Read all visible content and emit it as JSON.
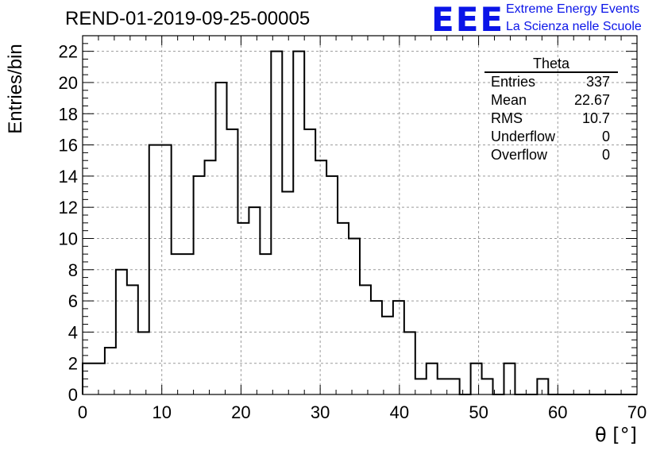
{
  "header": {
    "run_title": "REND-01-2019-09-25-00005",
    "logo_text": "EEE",
    "logo_line1": "Extreme Energy Events",
    "logo_line2": "La Scienza nelle Scuole",
    "logo_color": "#0a14e8"
  },
  "stats_box": {
    "title": "Theta",
    "rows": [
      {
        "label": "Entries",
        "value": "337"
      },
      {
        "label": "Mean",
        "value": "22.67"
      },
      {
        "label": "RMS",
        "value": "10.7"
      },
      {
        "label": "Underflow",
        "value": "0"
      },
      {
        "label": "Overflow",
        "value": "0"
      }
    ]
  },
  "chart_data": {
    "type": "bar",
    "style": "step-histogram",
    "xlabel": "θ [°]",
    "ylabel": "Entries/bin",
    "xlim": [
      0,
      70
    ],
    "ylim": [
      0,
      23
    ],
    "bin_width": 1.4,
    "grid": true,
    "xticks": [
      0,
      10,
      20,
      30,
      40,
      50,
      60,
      70
    ],
    "yticks": [
      0,
      2,
      4,
      6,
      8,
      10,
      12,
      14,
      16,
      18,
      20,
      22
    ],
    "values": [
      2,
      2,
      3,
      8,
      7,
      4,
      16,
      16,
      9,
      9,
      14,
      15,
      20,
      17,
      11,
      12,
      9,
      22,
      13,
      22,
      17,
      15,
      14,
      11,
      10,
      7,
      6,
      5,
      6,
      4,
      1,
      2,
      1,
      1,
      0,
      2,
      1,
      0,
      2,
      0,
      0,
      1,
      0,
      0,
      0,
      0,
      0,
      0,
      0,
      0
    ],
    "line_color": "#000000"
  }
}
